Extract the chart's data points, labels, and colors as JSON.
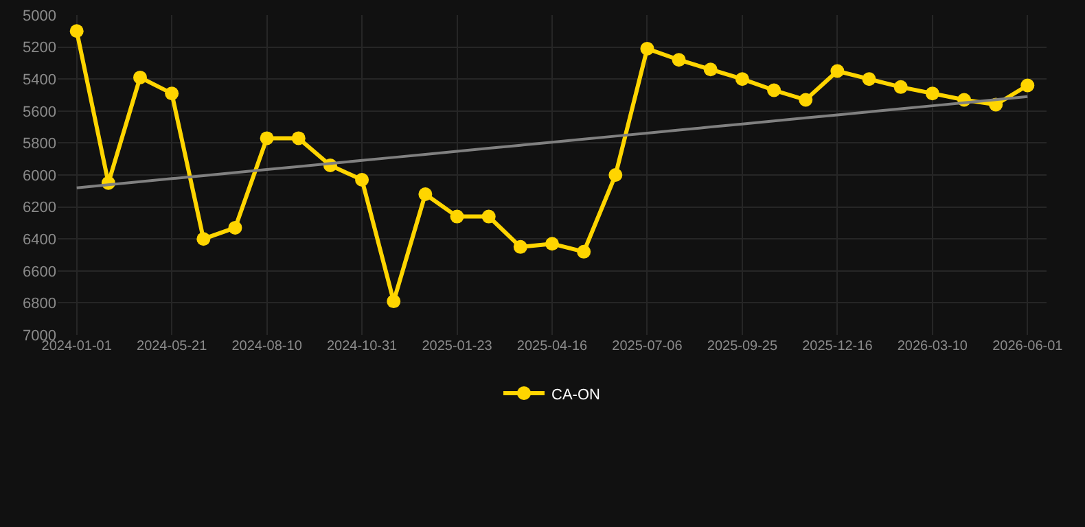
{
  "chart_data": {
    "type": "line",
    "categories": [
      "2024-01-01",
      null,
      null,
      "2024-05-21",
      null,
      null,
      "2024-08-10",
      null,
      null,
      "2024-10-31",
      null,
      null,
      "2025-01-23",
      null,
      null,
      "2025-04-16",
      null,
      null,
      "2025-07-06",
      null,
      null,
      "2025-09-25",
      null,
      null,
      "2025-12-16",
      null,
      null,
      "2026-03-10",
      null,
      null,
      "2026-06-01"
    ],
    "series": [
      {
        "name": "CA-ON",
        "color": "#ffd500",
        "marker": "circle",
        "values": [
          5100,
          6050,
          5390,
          5490,
          6400,
          6330,
          5770,
          5770,
          5940,
          6030,
          6790,
          6120,
          6260,
          6260,
          6450,
          6430,
          6480,
          6000,
          5210,
          5280,
          5340,
          5400,
          5470,
          5530,
          5350,
          5400,
          5450,
          5490,
          5530,
          5560,
          5440
        ]
      },
      {
        "color": "#808080",
        "marker": "none",
        "values": [
          6080,
          6061,
          6042,
          6023,
          6004,
          5985,
          5966,
          5947,
          5928,
          5909,
          5890,
          5871,
          5852,
          5833,
          5814,
          5795,
          5776,
          5757,
          5738,
          5719,
          5700,
          5681,
          5662,
          5643,
          5624,
          5605,
          5586,
          5567,
          5548,
          5529,
          5510
        ]
      }
    ],
    "ylim": [
      7000,
      5000
    ],
    "yticks": [
      5000,
      5200,
      5400,
      5600,
      5800,
      6000,
      6200,
      6400,
      6600,
      6800,
      7000
    ],
    "grid": true,
    "legend": "bottom"
  }
}
